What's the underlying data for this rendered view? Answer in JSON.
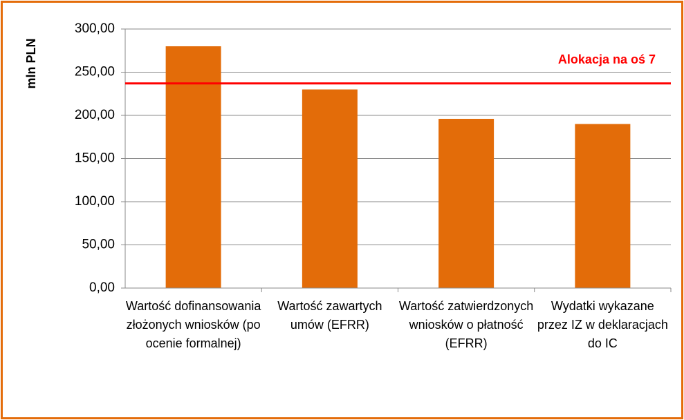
{
  "chart_data": {
    "type": "bar",
    "y_label": "mln PLN",
    "categories": [
      "Wartość dofinansowania złożonych wniosków (po ocenie formalnej)",
      "Wartość zawartych umów (EFRR)",
      "Wartość zatwierdzonych wniosków o płatność (EFRR)",
      "Wydatki wykazane przez IZ w deklaracjach do IC"
    ],
    "values": [
      280,
      230,
      196,
      190
    ],
    "color": "#e36c09",
    "ylim": [
      0,
      300
    ],
    "yticks": [
      {
        "value": 0,
        "label": "0,00"
      },
      {
        "value": 50,
        "label": "50,00"
      },
      {
        "value": 100,
        "label": "100,00"
      },
      {
        "value": 150,
        "label": "150,00"
      },
      {
        "value": 200,
        "label": "200,00"
      },
      {
        "value": 250,
        "label": "250,00"
      },
      {
        "value": 300,
        "label": "300,00"
      }
    ],
    "grid": true,
    "reference_line": {
      "label": "Alokacja na oś 7",
      "value": 237,
      "color": "#ff0000"
    }
  }
}
